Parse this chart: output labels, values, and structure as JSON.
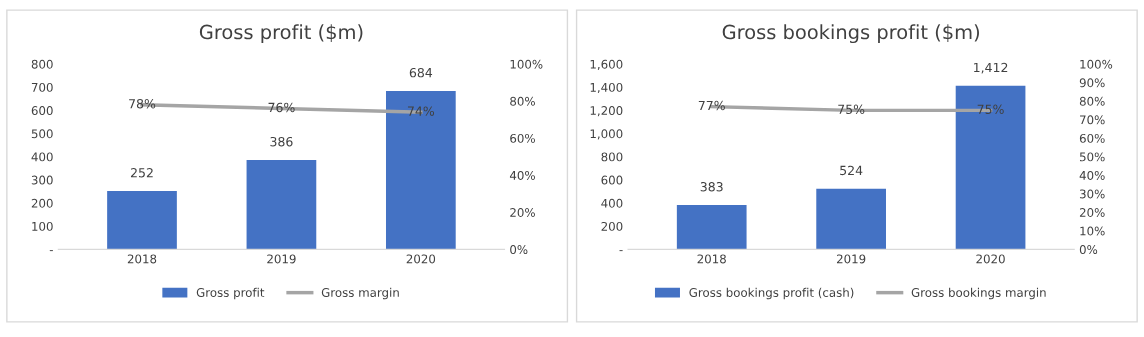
{
  "chart_data": [
    {
      "type": "bar",
      "title": "Gross profit ($m)",
      "categories": [
        "2018",
        "2019",
        "2020"
      ],
      "series": [
        {
          "name": "Gross profit",
          "color": "#4472c4",
          "values": [
            252,
            386,
            684
          ],
          "value_labels": [
            "252",
            "386",
            "684"
          ]
        },
        {
          "name": "Gross margin",
          "type": "line",
          "axis": "y2",
          "color": "#a5a5a5",
          "values": [
            78,
            76,
            74
          ],
          "value_labels": [
            "78%",
            "76%",
            "74%"
          ]
        }
      ],
      "ylim": [
        0,
        800
      ],
      "yticks": [
        {
          "value": 0,
          "label": "-"
        },
        100,
        200,
        300,
        400,
        500,
        600,
        700,
        800
      ],
      "y2lim": [
        0,
        100
      ],
      "y2ticks": [
        {
          "value": 0,
          "label": "0%"
        },
        {
          "value": 20,
          "label": "20%"
        },
        {
          "value": 40,
          "label": "40%"
        },
        {
          "value": 60,
          "label": "60%"
        },
        {
          "value": 80,
          "label": "80%"
        },
        {
          "value": 100,
          "label": "100%"
        }
      ],
      "legend": "bottom",
      "grid": false
    },
    {
      "type": "bar",
      "title": "Gross bookings profit ($m)",
      "categories": [
        "2018",
        "2019",
        "2020"
      ],
      "series": [
        {
          "name": "Gross bookings profit (cash)",
          "color": "#4472c4",
          "values": [
            383,
            524,
            1412
          ],
          "value_labels": [
            "383",
            "524",
            "1,412"
          ]
        },
        {
          "name": "Gross bookings margin",
          "type": "line",
          "axis": "y2",
          "color": "#a5a5a5",
          "values": [
            77,
            75,
            75
          ],
          "value_labels": [
            "77%",
            "75%",
            "75%"
          ]
        }
      ],
      "ylim": [
        0,
        1600
      ],
      "yticks": [
        {
          "value": 0,
          "label": "-"
        },
        {
          "value": 200,
          "label": "200"
        },
        {
          "value": 400,
          "label": "400"
        },
        {
          "value": 600,
          "label": "600"
        },
        {
          "value": 800,
          "label": "800"
        },
        {
          "value": 1000,
          "label": "1,000"
        },
        {
          "value": 1200,
          "label": "1,200"
        },
        {
          "value": 1400,
          "label": "1,400"
        },
        {
          "value": 1600,
          "label": "1,600"
        }
      ],
      "y2lim": [
        0,
        100
      ],
      "y2ticks": [
        {
          "value": 0,
          "label": "0%"
        },
        {
          "value": 10,
          "label": "10%"
        },
        {
          "value": 20,
          "label": "20%"
        },
        {
          "value": 30,
          "label": "30%"
        },
        {
          "value": 40,
          "label": "40%"
        },
        {
          "value": 50,
          "label": "50%"
        },
        {
          "value": 60,
          "label": "60%"
        },
        {
          "value": 70,
          "label": "70%"
        },
        {
          "value": 80,
          "label": "80%"
        },
        {
          "value": 90,
          "label": "90%"
        },
        {
          "value": 100,
          "label": "100%"
        }
      ],
      "legend": "bottom",
      "grid": false
    }
  ]
}
